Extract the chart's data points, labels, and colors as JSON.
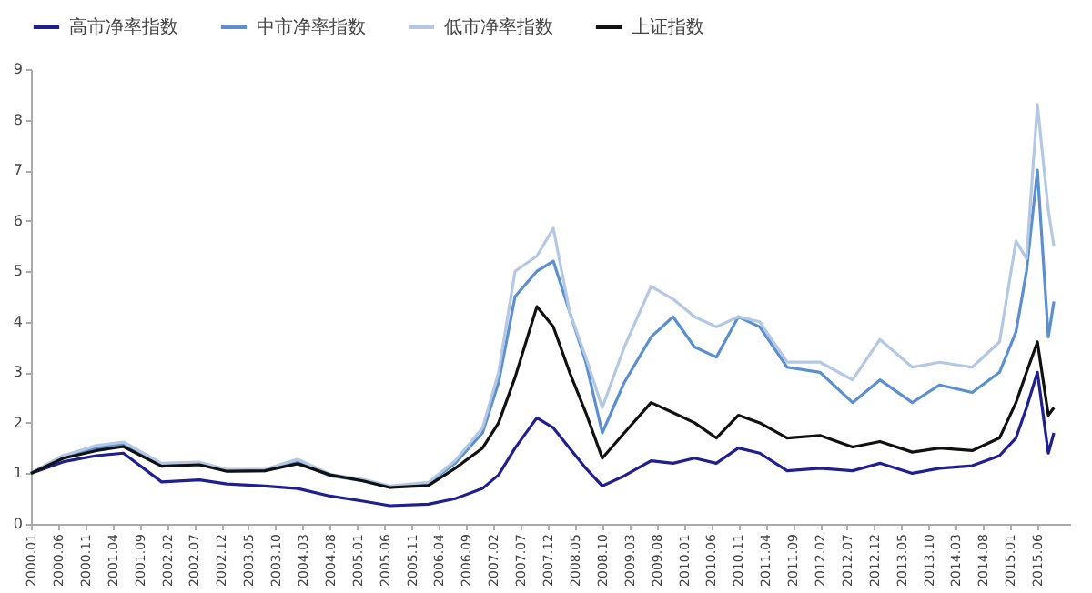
{
  "chart_data": {
    "type": "line",
    "x": [
      "2000-01",
      "2000-07",
      "2001-01",
      "2001-06",
      "2002-01",
      "2002-08",
      "2003-01",
      "2003-08",
      "2004-02",
      "2004-08",
      "2005-02",
      "2005-07",
      "2006-02",
      "2006-07",
      "2006-12",
      "2007-03",
      "2007-06",
      "2007-10",
      "2008-01",
      "2008-04",
      "2008-07",
      "2008-10",
      "2009-02",
      "2009-07",
      "2009-11",
      "2010-03",
      "2010-07",
      "2010-11",
      "2011-03",
      "2011-08",
      "2012-02",
      "2012-08",
      "2013-01",
      "2013-07",
      "2013-12",
      "2014-06",
      "2014-11",
      "2015-02",
      "2015-04",
      "2015-06",
      "2015-08",
      "2015-09"
    ],
    "series": [
      {
        "name": "高市净率指数",
        "color": "#1f1f8f",
        "values": [
          1.0,
          1.23,
          1.35,
          1.4,
          0.83,
          0.87,
          0.79,
          0.75,
          0.7,
          0.55,
          0.45,
          0.36,
          0.39,
          0.5,
          0.7,
          0.97,
          1.5,
          2.1,
          1.9,
          1.5,
          1.1,
          0.75,
          0.95,
          1.25,
          1.2,
          1.3,
          1.2,
          1.5,
          1.4,
          1.05,
          1.1,
          1.05,
          1.2,
          1.0,
          1.1,
          1.15,
          1.35,
          1.7,
          2.3,
          3.0,
          1.4,
          1.8
        ]
      },
      {
        "name": "中市净率指数",
        "color": "#5b8fd0",
        "values": [
          1.0,
          1.35,
          1.5,
          1.58,
          1.18,
          1.2,
          1.05,
          1.05,
          1.22,
          0.95,
          0.85,
          0.72,
          0.8,
          1.2,
          1.8,
          2.8,
          4.5,
          5.0,
          5.2,
          4.2,
          3.2,
          1.8,
          2.8,
          3.7,
          4.1,
          3.5,
          3.3,
          4.1,
          3.9,
          3.1,
          3.0,
          2.4,
          2.85,
          2.4,
          2.75,
          2.6,
          3.0,
          3.8,
          5.0,
          7.0,
          3.7,
          4.4
        ]
      },
      {
        "name": "低市净率指数",
        "color": "#b4c8e4",
        "values": [
          1.0,
          1.35,
          1.55,
          1.62,
          1.2,
          1.22,
          1.08,
          1.08,
          1.28,
          0.98,
          0.88,
          0.75,
          0.82,
          1.25,
          1.9,
          3.0,
          5.0,
          5.3,
          5.85,
          4.2,
          3.3,
          2.3,
          3.5,
          4.7,
          4.45,
          4.1,
          3.9,
          4.1,
          4.0,
          3.2,
          3.2,
          2.85,
          3.65,
          3.1,
          3.2,
          3.1,
          3.6,
          5.6,
          5.25,
          8.3,
          6.2,
          5.5
        ]
      },
      {
        "name": "上证指数",
        "color": "#111111",
        "values": [
          1.0,
          1.3,
          1.45,
          1.53,
          1.14,
          1.17,
          1.04,
          1.05,
          1.19,
          0.97,
          0.85,
          0.72,
          0.76,
          1.1,
          1.5,
          2.0,
          2.9,
          4.3,
          3.9,
          3.0,
          2.2,
          1.3,
          1.8,
          2.4,
          2.2,
          2.0,
          1.7,
          2.15,
          2.0,
          1.7,
          1.75,
          1.52,
          1.63,
          1.42,
          1.5,
          1.45,
          1.7,
          2.4,
          3.0,
          3.6,
          2.15,
          2.3
        ]
      }
    ],
    "xlim": [
      "2000-01",
      "2015-12"
    ],
    "xticks": [
      {
        "value": "2000-01",
        "label": "2000.01"
      },
      {
        "value": "2000-06",
        "label": "2000.06"
      },
      {
        "value": "2000-11",
        "label": "2000.11"
      },
      {
        "value": "2001-04",
        "label": "2001.04"
      },
      {
        "value": "2001-09",
        "label": "2001.09"
      },
      {
        "value": "2002-02",
        "label": "2002.02"
      },
      {
        "value": "2002-07",
        "label": "2002.07"
      },
      {
        "value": "2002-12",
        "label": "2002.12"
      },
      {
        "value": "2003-05",
        "label": "2003.05"
      },
      {
        "value": "2003-10",
        "label": "2003.10"
      },
      {
        "value": "2004-03",
        "label": "2004.03"
      },
      {
        "value": "2004-08",
        "label": "2004.08"
      },
      {
        "value": "2005-01",
        "label": "2005.01"
      },
      {
        "value": "2005-06",
        "label": "2005.06"
      },
      {
        "value": "2005-11",
        "label": "2005.11"
      },
      {
        "value": "2006-04",
        "label": "2006.04"
      },
      {
        "value": "2006-09",
        "label": "2006.09"
      },
      {
        "value": "2007-02",
        "label": "2007.02"
      },
      {
        "value": "2007-07",
        "label": "2007.07"
      },
      {
        "value": "2007-12",
        "label": "2007.12"
      },
      {
        "value": "2008-05",
        "label": "2008.05"
      },
      {
        "value": "2008-10",
        "label": "2008.10"
      },
      {
        "value": "2009-03",
        "label": "2009.03"
      },
      {
        "value": "2009-08",
        "label": "2009.08"
      },
      {
        "value": "2010-01",
        "label": "2010.01"
      },
      {
        "value": "2010-06",
        "label": "2010.06"
      },
      {
        "value": "2010-11",
        "label": "2010.11"
      },
      {
        "value": "2011-04",
        "label": "2011.04"
      },
      {
        "value": "2011-09",
        "label": "2011.09"
      },
      {
        "value": "2012-02",
        "label": "2012.02"
      },
      {
        "value": "2012-07",
        "label": "2012.07"
      },
      {
        "value": "2012-12",
        "label": "2012.12"
      },
      {
        "value": "2013-05",
        "label": "2013.05"
      },
      {
        "value": "2013-10",
        "label": "2013.10"
      },
      {
        "value": "2014-03",
        "label": "2014.03"
      },
      {
        "value": "2014-08",
        "label": "2014.08"
      },
      {
        "value": "2015-01",
        "label": "2015.01"
      },
      {
        "value": "2015-06",
        "label": "2015.06"
      }
    ],
    "ylim": [
      0,
      9
    ],
    "yticks": [
      0,
      1,
      2,
      3,
      4,
      5,
      6,
      7,
      8,
      9
    ],
    "grid": false,
    "legend": "top",
    "marker": "none",
    "line_style": "solid"
  }
}
